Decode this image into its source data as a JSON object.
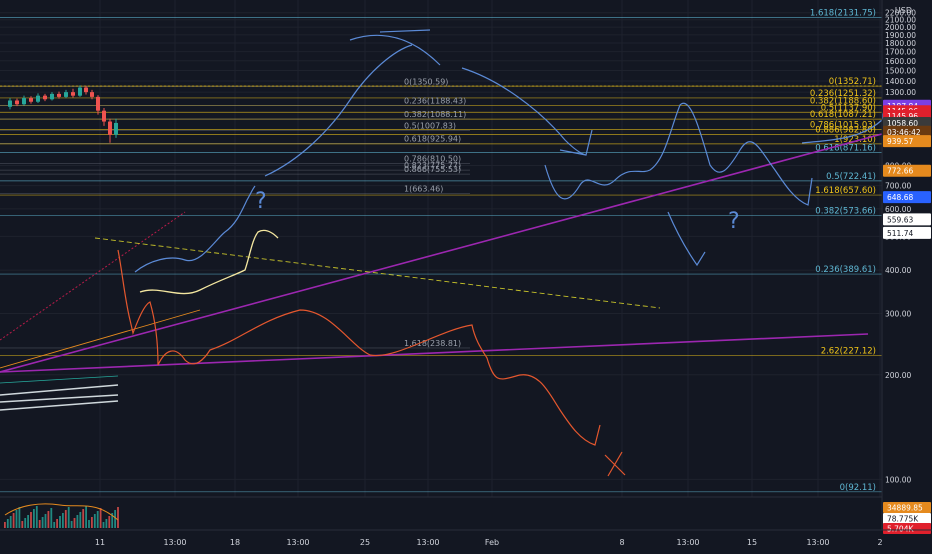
{
  "chart_data": {
    "type": "line",
    "currency": "USD",
    "price_axis": {
      "min": 100,
      "max": 2200,
      "ticks": [
        100,
        200,
        300,
        400,
        500,
        600,
        700,
        800,
        1300,
        1400,
        1500,
        1600,
        1700,
        1800,
        1900,
        2000,
        2100,
        2200
      ],
      "tick_labels": [
        "100.00",
        "200.00",
        "300.00",
        "400.00",
        "500.00",
        "600.00",
        "700.00",
        "800.00",
        "1300.00",
        "1400.00",
        "1500.00",
        "1600.00",
        "1700.00",
        "1800.00",
        "1900.00",
        "2000.00",
        "2100.00",
        "2200.00"
      ],
      "scale": "log"
    },
    "time_axis": {
      "tick_labels": [
        "11",
        "13:00",
        "18",
        "13:00",
        "25",
        "13:00",
        "Feb",
        "8",
        "13:00",
        "15",
        "13:00",
        "2"
      ]
    },
    "price_badges": [
      {
        "label": "1187.84",
        "value": 1187.84,
        "color": "#7b3fe4"
      },
      {
        "label": "1145.96",
        "value": 1145.96,
        "color": "#e0202c"
      },
      {
        "label": "1145.96",
        "value": 1110,
        "color": "#e0202c"
      },
      {
        "label": "1058.60",
        "value": 1060,
        "color": "#3a3a3a"
      },
      {
        "label": "03:46:42",
        "value": 1000,
        "color": "#6b3a10"
      },
      {
        "label": "939.57",
        "value": 939.57,
        "color": "#e58a1e"
      },
      {
        "label": "772.66",
        "value": 772.66,
        "color": "#e58a1e"
      },
      {
        "label": "648.68",
        "value": 648.68,
        "color": "#2962ff"
      },
      {
        "label": "559.63",
        "value": 559.63,
        "color": "#ffffff"
      },
      {
        "label": "511.74",
        "value": 511.74,
        "color": "#ffffff"
      }
    ],
    "volume_badges": [
      {
        "label": "34889.85",
        "color": "#e58a1e"
      },
      {
        "label": "78.775K",
        "color": "#ffffff"
      },
      {
        "label": "5.704K",
        "color": "#e0202c"
      }
    ],
    "fib_right_labels": [
      {
        "label": "1.618(2131.75)",
        "value": 2131.75,
        "color": "#5fb8d4"
      },
      {
        "label": "0(1352.71)",
        "value": 1352.71,
        "color": "#f0c419"
      },
      {
        "label": "0.236(1251.32)",
        "value": 1251.32,
        "color": "#f0c419"
      },
      {
        "label": "0.382(1188.60)",
        "value": 1188.6,
        "color": "#f0c419"
      },
      {
        "label": "0.5(1137.90)",
        "value": 1137.9,
        "color": "#f0c419"
      },
      {
        "label": "0.618(1087.21)",
        "value": 1087.21,
        "color": "#f0c419"
      },
      {
        "label": "0.786(1015.03)",
        "value": 1015.03,
        "color": "#f0c419"
      },
      {
        "label": "0.886(982.80)",
        "value": 982.8,
        "color": "#f0c419"
      },
      {
        "label": "1(923.10)",
        "value": 923.1,
        "color": "#f0c419"
      },
      {
        "label": "0.618(871.16)",
        "value": 871.16,
        "color": "#5fb8d4"
      },
      {
        "label": "0.5(722.41)",
        "value": 722.41,
        "color": "#5fb8d4"
      },
      {
        "label": "1.618(657.60)",
        "value": 657.6,
        "color": "#f0c419"
      },
      {
        "label": "0.382(573.66)",
        "value": 573.66,
        "color": "#5fb8d4"
      },
      {
        "label": "0.236(389.61)",
        "value": 389.61,
        "color": "#5fb8d4"
      },
      {
        "label": "2.62(227.12)",
        "value": 227.12,
        "color": "#f0c419"
      },
      {
        "label": "0(92.11)",
        "value": 92.11,
        "color": "#5fb8d4"
      }
    ],
    "fib_mid_labels": [
      {
        "label": "0(1350.59)",
        "value": 1350.59
      },
      {
        "label": "0.236(1188.43)",
        "value": 1188.43
      },
      {
        "label": "0.382(1088.11)",
        "value": 1088.11
      },
      {
        "label": "0.5(1007.83)",
        "value": 1007.83
      },
      {
        "label": "0.618(925.94)",
        "value": 925.94
      },
      {
        "label": "0.786(810.50)",
        "value": 810.5
      },
      {
        "label": "0.823(775.77)",
        "value": 775.77
      },
      {
        "label": "0.866(755.53)",
        "value": 755.53
      },
      {
        "label": "1(663.46)",
        "value": 663.46
      },
      {
        "label": "1.618(238.81)",
        "value": 238.81
      }
    ],
    "annotations": [
      "?",
      "?"
    ],
    "grid": true,
    "legend": "none"
  }
}
